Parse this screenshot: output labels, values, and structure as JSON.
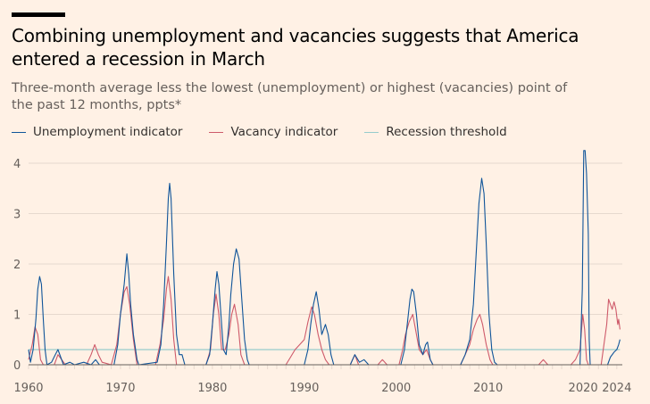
{
  "header": {
    "title": "Combining unemployment and vacancies suggests that America entered a recession in March",
    "subtitle": "Three-month average less the lowest (unemployment) or highest (vacancies) point of the past 12 months, ppts*"
  },
  "colors": {
    "background": "#fff1e5",
    "unemployment": "#0f5499",
    "vacancy": "#ce5a6a",
    "threshold": "#96cccc",
    "grid": "#e6d9ce",
    "axis": "#66605c"
  },
  "chart_data": {
    "type": "line",
    "title": "Combining unemployment and vacancies suggests that America entered a recession in March",
    "subtitle": "Three-month average less the lowest (unemployment) or highest (vacancies) point of the past 12 months, ppts*",
    "xlabel": "",
    "ylabel": "",
    "xlim": [
      1960,
      2024.6
    ],
    "ylim": [
      0,
      4.3
    ],
    "grid": true,
    "legend": "top-left",
    "x_ticks": [
      {
        "value": 1960,
        "label": "1960"
      },
      {
        "value": 1970,
        "label": "1970"
      },
      {
        "value": 1980,
        "label": "1980"
      },
      {
        "value": 1990,
        "label": "1990"
      },
      {
        "value": 2000,
        "label": "2000"
      },
      {
        "value": 2010,
        "label": "2010"
      },
      {
        "value": 2020,
        "label": "2020"
      },
      {
        "value": 2024,
        "label": "2024"
      }
    ],
    "y_ticks": [
      {
        "value": 0,
        "label": "0"
      },
      {
        "value": 1,
        "label": "1"
      },
      {
        "value": 2,
        "label": "2"
      },
      {
        "value": 3,
        "label": "3"
      },
      {
        "value": 4,
        "label": "4"
      }
    ],
    "series": [
      {
        "name": "Unemployment indicator",
        "color": "#0f5499",
        "points": [
          [
            1960.0,
            0.3
          ],
          [
            1960.2,
            0.05
          ],
          [
            1960.5,
            0.3
          ],
          [
            1960.8,
            0.9
          ],
          [
            1961.0,
            1.5
          ],
          [
            1961.2,
            1.75
          ],
          [
            1961.4,
            1.6
          ],
          [
            1961.6,
            0.9
          ],
          [
            1961.8,
            0.3
          ],
          [
            1962.0,
            0.0
          ],
          [
            1962.5,
            0.05
          ],
          [
            1962.9,
            0.2
          ],
          [
            1963.2,
            0.3
          ],
          [
            1963.5,
            0.15
          ],
          [
            1963.8,
            0.0
          ],
          [
            1964.5,
            0.05
          ],
          [
            1965.0,
            0.0
          ],
          [
            1966.0,
            0.05
          ],
          [
            1966.8,
            0.0
          ],
          [
            1967.3,
            0.1
          ],
          [
            1967.7,
            0.0
          ],
          [
            1968.0,
            0.0
          ],
          [
            1969.3,
            0.0
          ],
          [
            1969.7,
            0.4
          ],
          [
            1970.0,
            1.0
          ],
          [
            1970.4,
            1.6
          ],
          [
            1970.7,
            2.2
          ],
          [
            1970.9,
            1.8
          ],
          [
            1971.1,
            1.2
          ],
          [
            1971.4,
            0.6
          ],
          [
            1971.8,
            0.1
          ],
          [
            1972.0,
            0.0
          ],
          [
            1974.0,
            0.05
          ],
          [
            1974.4,
            0.4
          ],
          [
            1974.7,
            1.2
          ],
          [
            1975.0,
            2.4
          ],
          [
            1975.2,
            3.3
          ],
          [
            1975.35,
            3.6
          ],
          [
            1975.5,
            3.3
          ],
          [
            1975.8,
            1.8
          ],
          [
            1976.1,
            0.6
          ],
          [
            1976.4,
            0.2
          ],
          [
            1976.7,
            0.2
          ],
          [
            1977.0,
            0.0
          ],
          [
            1978.0,
            0.0
          ],
          [
            1979.3,
            0.0
          ],
          [
            1979.7,
            0.2
          ],
          [
            1980.0,
            0.8
          ],
          [
            1980.3,
            1.5
          ],
          [
            1980.5,
            1.85
          ],
          [
            1980.7,
            1.6
          ],
          [
            1981.0,
            0.8
          ],
          [
            1981.2,
            0.3
          ],
          [
            1981.5,
            0.2
          ],
          [
            1981.8,
            0.8
          ],
          [
            1982.0,
            1.4
          ],
          [
            1982.3,
            2.0
          ],
          [
            1982.6,
            2.3
          ],
          [
            1982.9,
            2.1
          ],
          [
            1983.2,
            1.3
          ],
          [
            1983.5,
            0.5
          ],
          [
            1983.8,
            0.1
          ],
          [
            1984.0,
            0.0
          ],
          [
            1990.0,
            0.0
          ],
          [
            1990.4,
            0.3
          ],
          [
            1990.7,
            0.8
          ],
          [
            1991.0,
            1.2
          ],
          [
            1991.3,
            1.45
          ],
          [
            1991.6,
            1.1
          ],
          [
            1991.9,
            0.6
          ],
          [
            1992.3,
            0.8
          ],
          [
            1992.6,
            0.6
          ],
          [
            1992.9,
            0.2
          ],
          [
            1993.2,
            0.0
          ],
          [
            1995.0,
            0.0
          ],
          [
            1995.5,
            0.2
          ],
          [
            1996.0,
            0.05
          ],
          [
            1996.5,
            0.1
          ],
          [
            1997.0,
            0.0
          ],
          [
            2000.5,
            0.0
          ],
          [
            2000.9,
            0.3
          ],
          [
            2001.2,
            0.8
          ],
          [
            2001.5,
            1.3
          ],
          [
            2001.7,
            1.5
          ],
          [
            2001.9,
            1.45
          ],
          [
            2002.2,
            1.0
          ],
          [
            2002.5,
            0.4
          ],
          [
            2002.9,
            0.2
          ],
          [
            2003.2,
            0.4
          ],
          [
            2003.4,
            0.45
          ],
          [
            2003.7,
            0.1
          ],
          [
            2004.0,
            0.0
          ],
          [
            2007.0,
            0.0
          ],
          [
            2007.5,
            0.2
          ],
          [
            2008.0,
            0.5
          ],
          [
            2008.4,
            1.2
          ],
          [
            2008.7,
            2.2
          ],
          [
            2009.0,
            3.2
          ],
          [
            2009.3,
            3.7
          ],
          [
            2009.55,
            3.4
          ],
          [
            2009.8,
            2.4
          ],
          [
            2010.1,
            1.0
          ],
          [
            2010.4,
            0.3
          ],
          [
            2010.7,
            0.05
          ],
          [
            2011.0,
            0.0
          ],
          [
            2020.0,
            0.0
          ],
          [
            2020.25,
            1.5
          ],
          [
            2020.4,
            4.25
          ],
          [
            2020.55,
            4.25
          ],
          [
            2020.7,
            3.8
          ],
          [
            2020.9,
            2.6
          ],
          [
            2021.0,
            0.5
          ],
          [
            2021.1,
            0.0
          ],
          [
            2023.0,
            0.0
          ],
          [
            2023.3,
            0.15
          ],
          [
            2023.7,
            0.25
          ],
          [
            2024.0,
            0.3
          ],
          [
            2024.2,
            0.4
          ],
          [
            2024.35,
            0.5
          ]
        ]
      },
      {
        "name": "Vacancy indicator",
        "color": "#ce5a6a",
        "points": [
          [
            1960.0,
            0.1
          ],
          [
            1960.4,
            0.4
          ],
          [
            1960.7,
            0.75
          ],
          [
            1961.0,
            0.6
          ],
          [
            1961.3,
            0.1
          ],
          [
            1961.6,
            0.0
          ],
          [
            1962.8,
            0.0
          ],
          [
            1963.2,
            0.2
          ],
          [
            1963.6,
            0.1
          ],
          [
            1964.0,
            0.0
          ],
          [
            1966.3,
            0.0
          ],
          [
            1966.8,
            0.2
          ],
          [
            1967.2,
            0.4
          ],
          [
            1967.6,
            0.2
          ],
          [
            1968.0,
            0.05
          ],
          [
            1969.0,
            0.0
          ],
          [
            1969.6,
            0.4
          ],
          [
            1970.0,
            1.0
          ],
          [
            1970.4,
            1.45
          ],
          [
            1970.7,
            1.55
          ],
          [
            1971.0,
            1.2
          ],
          [
            1971.4,
            0.5
          ],
          [
            1971.8,
            0.0
          ],
          [
            1973.8,
            0.0
          ],
          [
            1974.3,
            0.4
          ],
          [
            1974.7,
            0.9
          ],
          [
            1975.0,
            1.5
          ],
          [
            1975.2,
            1.75
          ],
          [
            1975.5,
            1.3
          ],
          [
            1975.8,
            0.5
          ],
          [
            1976.1,
            0.0
          ],
          [
            1979.3,
            0.0
          ],
          [
            1979.8,
            0.3
          ],
          [
            1980.1,
            1.0
          ],
          [
            1980.4,
            1.4
          ],
          [
            1980.7,
            1.0
          ],
          [
            1981.0,
            0.3
          ],
          [
            1981.4,
            0.3
          ],
          [
            1981.8,
            0.6
          ],
          [
            1982.1,
            1.0
          ],
          [
            1982.4,
            1.2
          ],
          [
            1982.8,
            0.8
          ],
          [
            1983.1,
            0.2
          ],
          [
            1983.5,
            0.0
          ],
          [
            1988.0,
            0.0
          ],
          [
            1988.5,
            0.15
          ],
          [
            1989.0,
            0.3
          ],
          [
            1989.5,
            0.4
          ],
          [
            1990.0,
            0.5
          ],
          [
            1990.4,
            0.85
          ],
          [
            1990.8,
            1.15
          ],
          [
            1991.1,
            1.0
          ],
          [
            1991.5,
            0.6
          ],
          [
            1991.9,
            0.3
          ],
          [
            1992.3,
            0.1
          ],
          [
            1992.7,
            0.0
          ],
          [
            1995.0,
            0.0
          ],
          [
            1995.5,
            0.2
          ],
          [
            1995.9,
            0.0
          ],
          [
            1998.0,
            0.0
          ],
          [
            1998.5,
            0.1
          ],
          [
            1999.0,
            0.0
          ],
          [
            2000.3,
            0.0
          ],
          [
            2000.7,
            0.3
          ],
          [
            2001.0,
            0.6
          ],
          [
            2001.4,
            0.85
          ],
          [
            2001.8,
            1.0
          ],
          [
            2002.1,
            0.7
          ],
          [
            2002.5,
            0.3
          ],
          [
            2002.9,
            0.2
          ],
          [
            2003.3,
            0.3
          ],
          [
            2003.7,
            0.1
          ],
          [
            2004.0,
            0.0
          ],
          [
            2007.0,
            0.0
          ],
          [
            2007.5,
            0.2
          ],
          [
            2008.0,
            0.4
          ],
          [
            2008.4,
            0.7
          ],
          [
            2008.8,
            0.9
          ],
          [
            2009.1,
            1.0
          ],
          [
            2009.4,
            0.8
          ],
          [
            2009.8,
            0.4
          ],
          [
            2010.2,
            0.1
          ],
          [
            2010.5,
            0.0
          ],
          [
            2015.5,
            0.0
          ],
          [
            2016.0,
            0.1
          ],
          [
            2016.5,
            0.0
          ],
          [
            2019.0,
            0.0
          ],
          [
            2019.5,
            0.1
          ],
          [
            2020.0,
            0.3
          ],
          [
            2020.3,
            1.0
          ],
          [
            2020.5,
            0.7
          ],
          [
            2020.7,
            0.1
          ],
          [
            2020.9,
            0.0
          ],
          [
            2022.3,
            0.0
          ],
          [
            2022.6,
            0.4
          ],
          [
            2022.9,
            0.8
          ],
          [
            2023.1,
            1.3
          ],
          [
            2023.3,
            1.2
          ],
          [
            2023.5,
            1.1
          ],
          [
            2023.7,
            1.25
          ],
          [
            2023.9,
            1.1
          ],
          [
            2024.1,
            0.8
          ],
          [
            2024.2,
            0.9
          ],
          [
            2024.35,
            0.7
          ]
        ]
      },
      {
        "name": "Recession threshold",
        "color": "#96cccc",
        "points": [
          [
            1960.0,
            0.3
          ],
          [
            2024.35,
            0.3
          ]
        ]
      }
    ]
  }
}
